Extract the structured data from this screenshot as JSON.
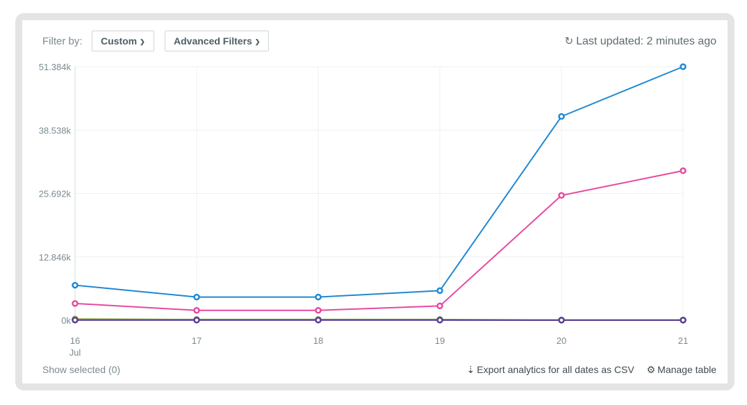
{
  "filter": {
    "label": "Filter by:",
    "custom_label": "Custom",
    "advanced_label": "Advanced Filters"
  },
  "status": {
    "last_updated": "Last updated: 2 minutes ago"
  },
  "footer": {
    "show_selected": "Show selected (0)",
    "export_label": "Export analytics for all dates as CSV",
    "manage_label": "Manage table"
  },
  "icons": {
    "refresh": "refresh-icon",
    "export": "export-csv-icon",
    "settings": "gear-icon",
    "chevron": "chevron-down-icon"
  },
  "chart_data": {
    "type": "line",
    "x": [
      "16",
      "17",
      "18",
      "19",
      "20",
      "21"
    ],
    "x_sublabel": "Jul",
    "ylim": [
      0,
      51384
    ],
    "yticks": [
      0,
      12846,
      25692,
      38538,
      51384
    ],
    "ytick_labels": [
      "0k",
      "12.846k",
      "25.692k",
      "38.538k",
      "51.384k"
    ],
    "grid": true,
    "series": [
      {
        "color": "#1e88d2",
        "values": [
          7100,
          4700,
          4700,
          6000,
          41300,
          51384
        ]
      },
      {
        "color": "#e8489e",
        "values": [
          3400,
          2000,
          2000,
          2900,
          25300,
          30300
        ]
      },
      {
        "color": "#9aa335",
        "values": [
          250,
          150,
          150,
          150,
          50,
          50
        ]
      },
      {
        "color": "#2aa898",
        "values": [
          60,
          50,
          50,
          50,
          30,
          30
        ]
      },
      {
        "color": "#5a3d94",
        "values": [
          40,
          30,
          30,
          30,
          20,
          20
        ]
      }
    ]
  }
}
